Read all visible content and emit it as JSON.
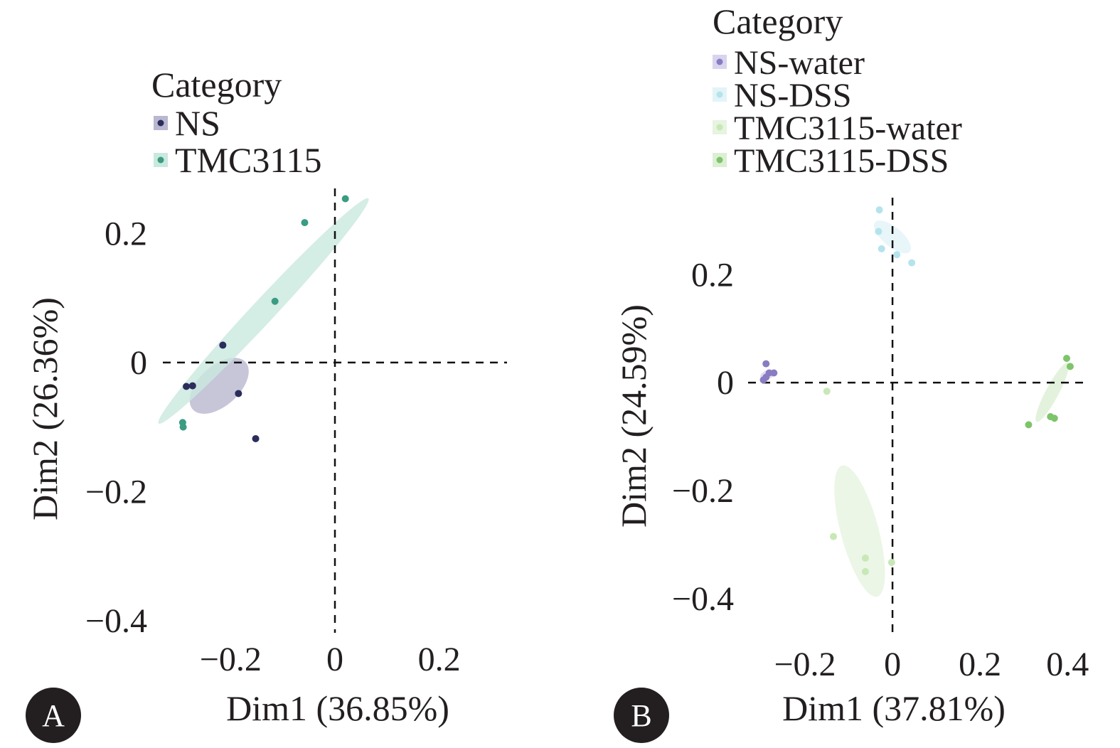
{
  "chart_data": [
    {
      "panel": "A",
      "type": "scatter",
      "xlabel": "Dim1 (36.85%)",
      "ylabel": "Dim2 (26.36%)",
      "xlim": [
        -0.33,
        0.33
      ],
      "ylim": [
        -0.43,
        0.27
      ],
      "xticks": [
        -0.2,
        0,
        0.2
      ],
      "yticks": [
        0.2,
        0,
        -0.2,
        -0.4
      ],
      "xtick_labels": [
        "−0.2",
        "0",
        "0.2"
      ],
      "ytick_labels": [
        "0.2",
        "0",
        "−0.2",
        "−0.4"
      ],
      "legend": {
        "title": "Category",
        "position": "top"
      },
      "series": [
        {
          "name": "NS",
          "color": "#2b2d5c",
          "ellipse_color": "#b9b8cf",
          "points": [
            {
              "x": -0.215,
              "y": 0.027
            },
            {
              "x": -0.285,
              "y": -0.037
            },
            {
              "x": -0.273,
              "y": -0.036
            },
            {
              "x": -0.185,
              "y": -0.048
            },
            {
              "x": -0.152,
              "y": -0.118
            }
          ],
          "ellipse": {
            "cx": -0.222,
            "cy": -0.036,
            "rx": 0.068,
            "ry": 0.031,
            "angle": -42
          }
        },
        {
          "name": "TMC3115",
          "color": "#3a9c82",
          "ellipse_color": "#c9e8de",
          "points": [
            {
              "x": 0.02,
              "y": 0.254
            },
            {
              "x": -0.058,
              "y": 0.217
            },
            {
              "x": -0.115,
              "y": 0.095
            },
            {
              "x": -0.292,
              "y": -0.093
            },
            {
              "x": -0.291,
              "y": -0.1
            }
          ],
          "ellipse": {
            "cx": -0.137,
            "cy": 0.08,
            "rx": 0.295,
            "ry": 0.018,
            "angle": -47
          }
        }
      ]
    },
    {
      "panel": "B",
      "type": "scatter",
      "xlabel": "Dim1 (37.81%)",
      "ylabel": "Dim2 (24.59%)",
      "xlim": [
        -0.33,
        0.45
      ],
      "ylim": [
        -0.47,
        0.34
      ],
      "xticks": [
        -0.2,
        0,
        0.2,
        0.4
      ],
      "yticks": [
        0.2,
        0,
        -0.2,
        -0.4
      ],
      "xtick_labels": [
        "−0.2",
        "0",
        "0.2",
        "0.4"
      ],
      "ytick_labels": [
        "0.2",
        "0",
        "−0.2",
        "−0.4"
      ],
      "legend": {
        "title": "Category",
        "position": "top"
      },
      "series": [
        {
          "name": "NS-water",
          "color": "#8a7cc2",
          "ellipse_color": "#d9d4ee",
          "points": [
            {
              "x": -0.289,
              "y": 0.035
            },
            {
              "x": -0.282,
              "y": 0.018
            },
            {
              "x": -0.271,
              "y": 0.018
            },
            {
              "x": -0.295,
              "y": 0.005
            },
            {
              "x": -0.289,
              "y": 0.01
            }
          ],
          "ellipse": {
            "cx": -0.285,
            "cy": 0.015,
            "rx": 0.018,
            "ry": 0.008,
            "angle": -20
          }
        },
        {
          "name": "NS-DSS",
          "color": "#b5e3ec",
          "ellipse_color": "#e2f4f7",
          "points": [
            {
              "x": -0.03,
              "y": 0.32
            },
            {
              "x": -0.032,
              "y": 0.28
            },
            {
              "x": -0.025,
              "y": 0.248
            },
            {
              "x": 0.01,
              "y": 0.237
            },
            {
              "x": 0.044,
              "y": 0.222
            }
          ],
          "ellipse": {
            "cx": 0.0,
            "cy": 0.27,
            "rx": 0.052,
            "ry": 0.018,
            "angle": 40
          }
        },
        {
          "name": "TMC3115-water",
          "color": "#c8e8b6",
          "ellipse_color": "#e6f4e0",
          "points": [
            {
              "x": -0.15,
              "y": -0.016
            },
            {
              "x": -0.135,
              "y": -0.285
            },
            {
              "x": -0.062,
              "y": -0.325
            },
            {
              "x": -0.062,
              "y": -0.35
            },
            {
              "x": -0.002,
              "y": -0.333
            }
          ],
          "ellipse": {
            "cx": -0.075,
            "cy": -0.275,
            "rx": 0.155,
            "ry": 0.035,
            "angle": 75
          }
        },
        {
          "name": "TMC3115-DSS",
          "color": "#7ec46a",
          "ellipse_color": "#dcefd3",
          "points": [
            {
              "x": 0.398,
              "y": 0.045
            },
            {
              "x": 0.406,
              "y": 0.03
            },
            {
              "x": 0.311,
              "y": -0.078
            },
            {
              "x": 0.361,
              "y": -0.063
            },
            {
              "x": 0.37,
              "y": -0.066
            }
          ],
          "ellipse": {
            "cx": 0.365,
            "cy": -0.018,
            "rx": 0.076,
            "ry": 0.012,
            "angle": -62
          }
        }
      ]
    }
  ],
  "panels": {
    "a": {
      "badge": "A"
    },
    "b": {
      "badge": "B"
    }
  }
}
